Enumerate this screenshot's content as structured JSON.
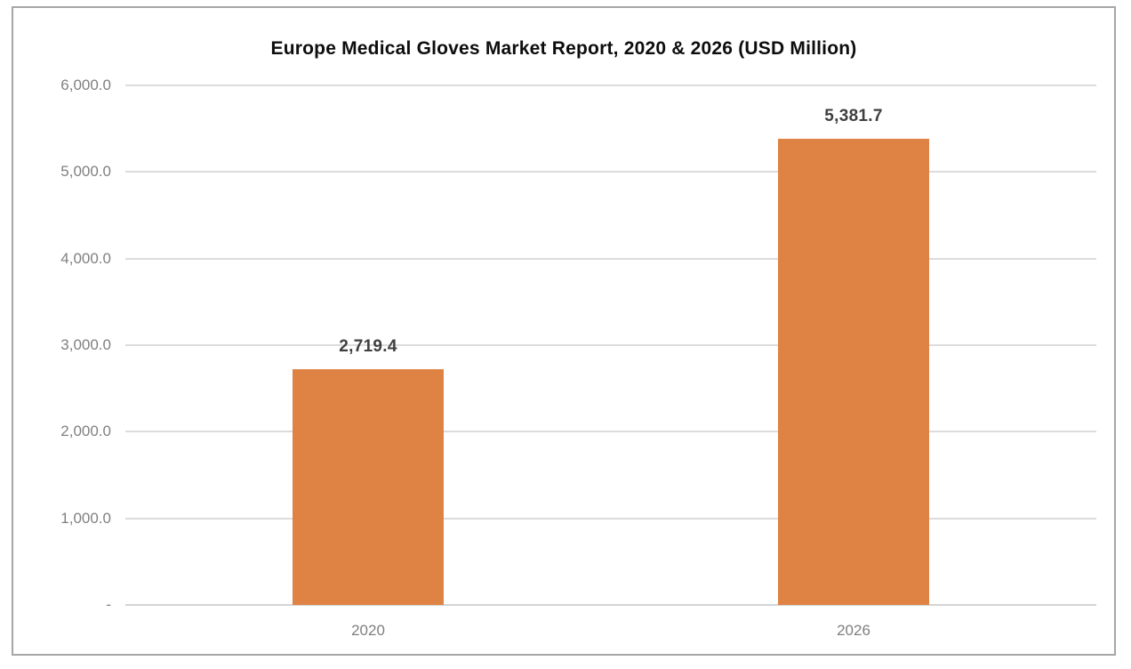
{
  "chart_data": {
    "type": "bar",
    "title": "Europe Medical Gloves Market Report, 2020 & 2026 (USD Million)",
    "categories": [
      "2020",
      "2026"
    ],
    "values": [
      2719.4,
      5381.7
    ],
    "value_labels": [
      "2,719.4",
      "5,381.7"
    ],
    "xlabel": "",
    "ylabel": "",
    "ylim": [
      0,
      6000
    ],
    "ytick_interval": 1000,
    "ytick_labels_top_to_bottom": [
      "6,000.0",
      "5,000.0",
      "4,000.0",
      "3,000.0",
      "2,000.0",
      "1,000.0",
      "-"
    ],
    "grid": true,
    "legend_position": "none",
    "bar_color": "#df8344",
    "gridline_color": "#dcdcdc",
    "frame_border_color": "#a6a6a6",
    "title_color": "#0d0d0d",
    "ytick_color": "#808080",
    "xtick_color": "#7f7f7f",
    "value_label_color": "#3f3f3f"
  }
}
